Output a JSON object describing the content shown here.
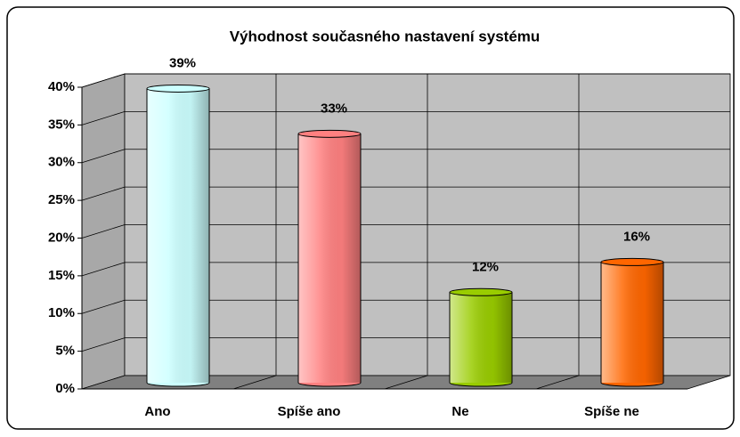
{
  "chart_data": {
    "type": "bar3d",
    "title": "Výhodnost současného nastavení systému",
    "categories": [
      "Ano",
      "Spíše ano",
      "Ne",
      "Spíše ne"
    ],
    "values": [
      39,
      33,
      12,
      16
    ],
    "value_labels": [
      "39%",
      "33%",
      "12%",
      "16%"
    ],
    "colors": [
      "#ccffff",
      "#ff8080",
      "#99cc00",
      "#ff6600"
    ],
    "ylim": [
      0,
      40
    ],
    "yticks": [
      {
        "value": 0,
        "label": "0%"
      },
      {
        "value": 5,
        "label": "5%"
      },
      {
        "value": 10,
        "label": "10%"
      },
      {
        "value": 15,
        "label": "15%"
      },
      {
        "value": 20,
        "label": "20%"
      },
      {
        "value": 25,
        "label": "25%"
      },
      {
        "value": 30,
        "label": "30%"
      },
      {
        "value": 35,
        "label": "35%"
      },
      {
        "value": 40,
        "label": "40%"
      }
    ],
    "grid": true
  }
}
